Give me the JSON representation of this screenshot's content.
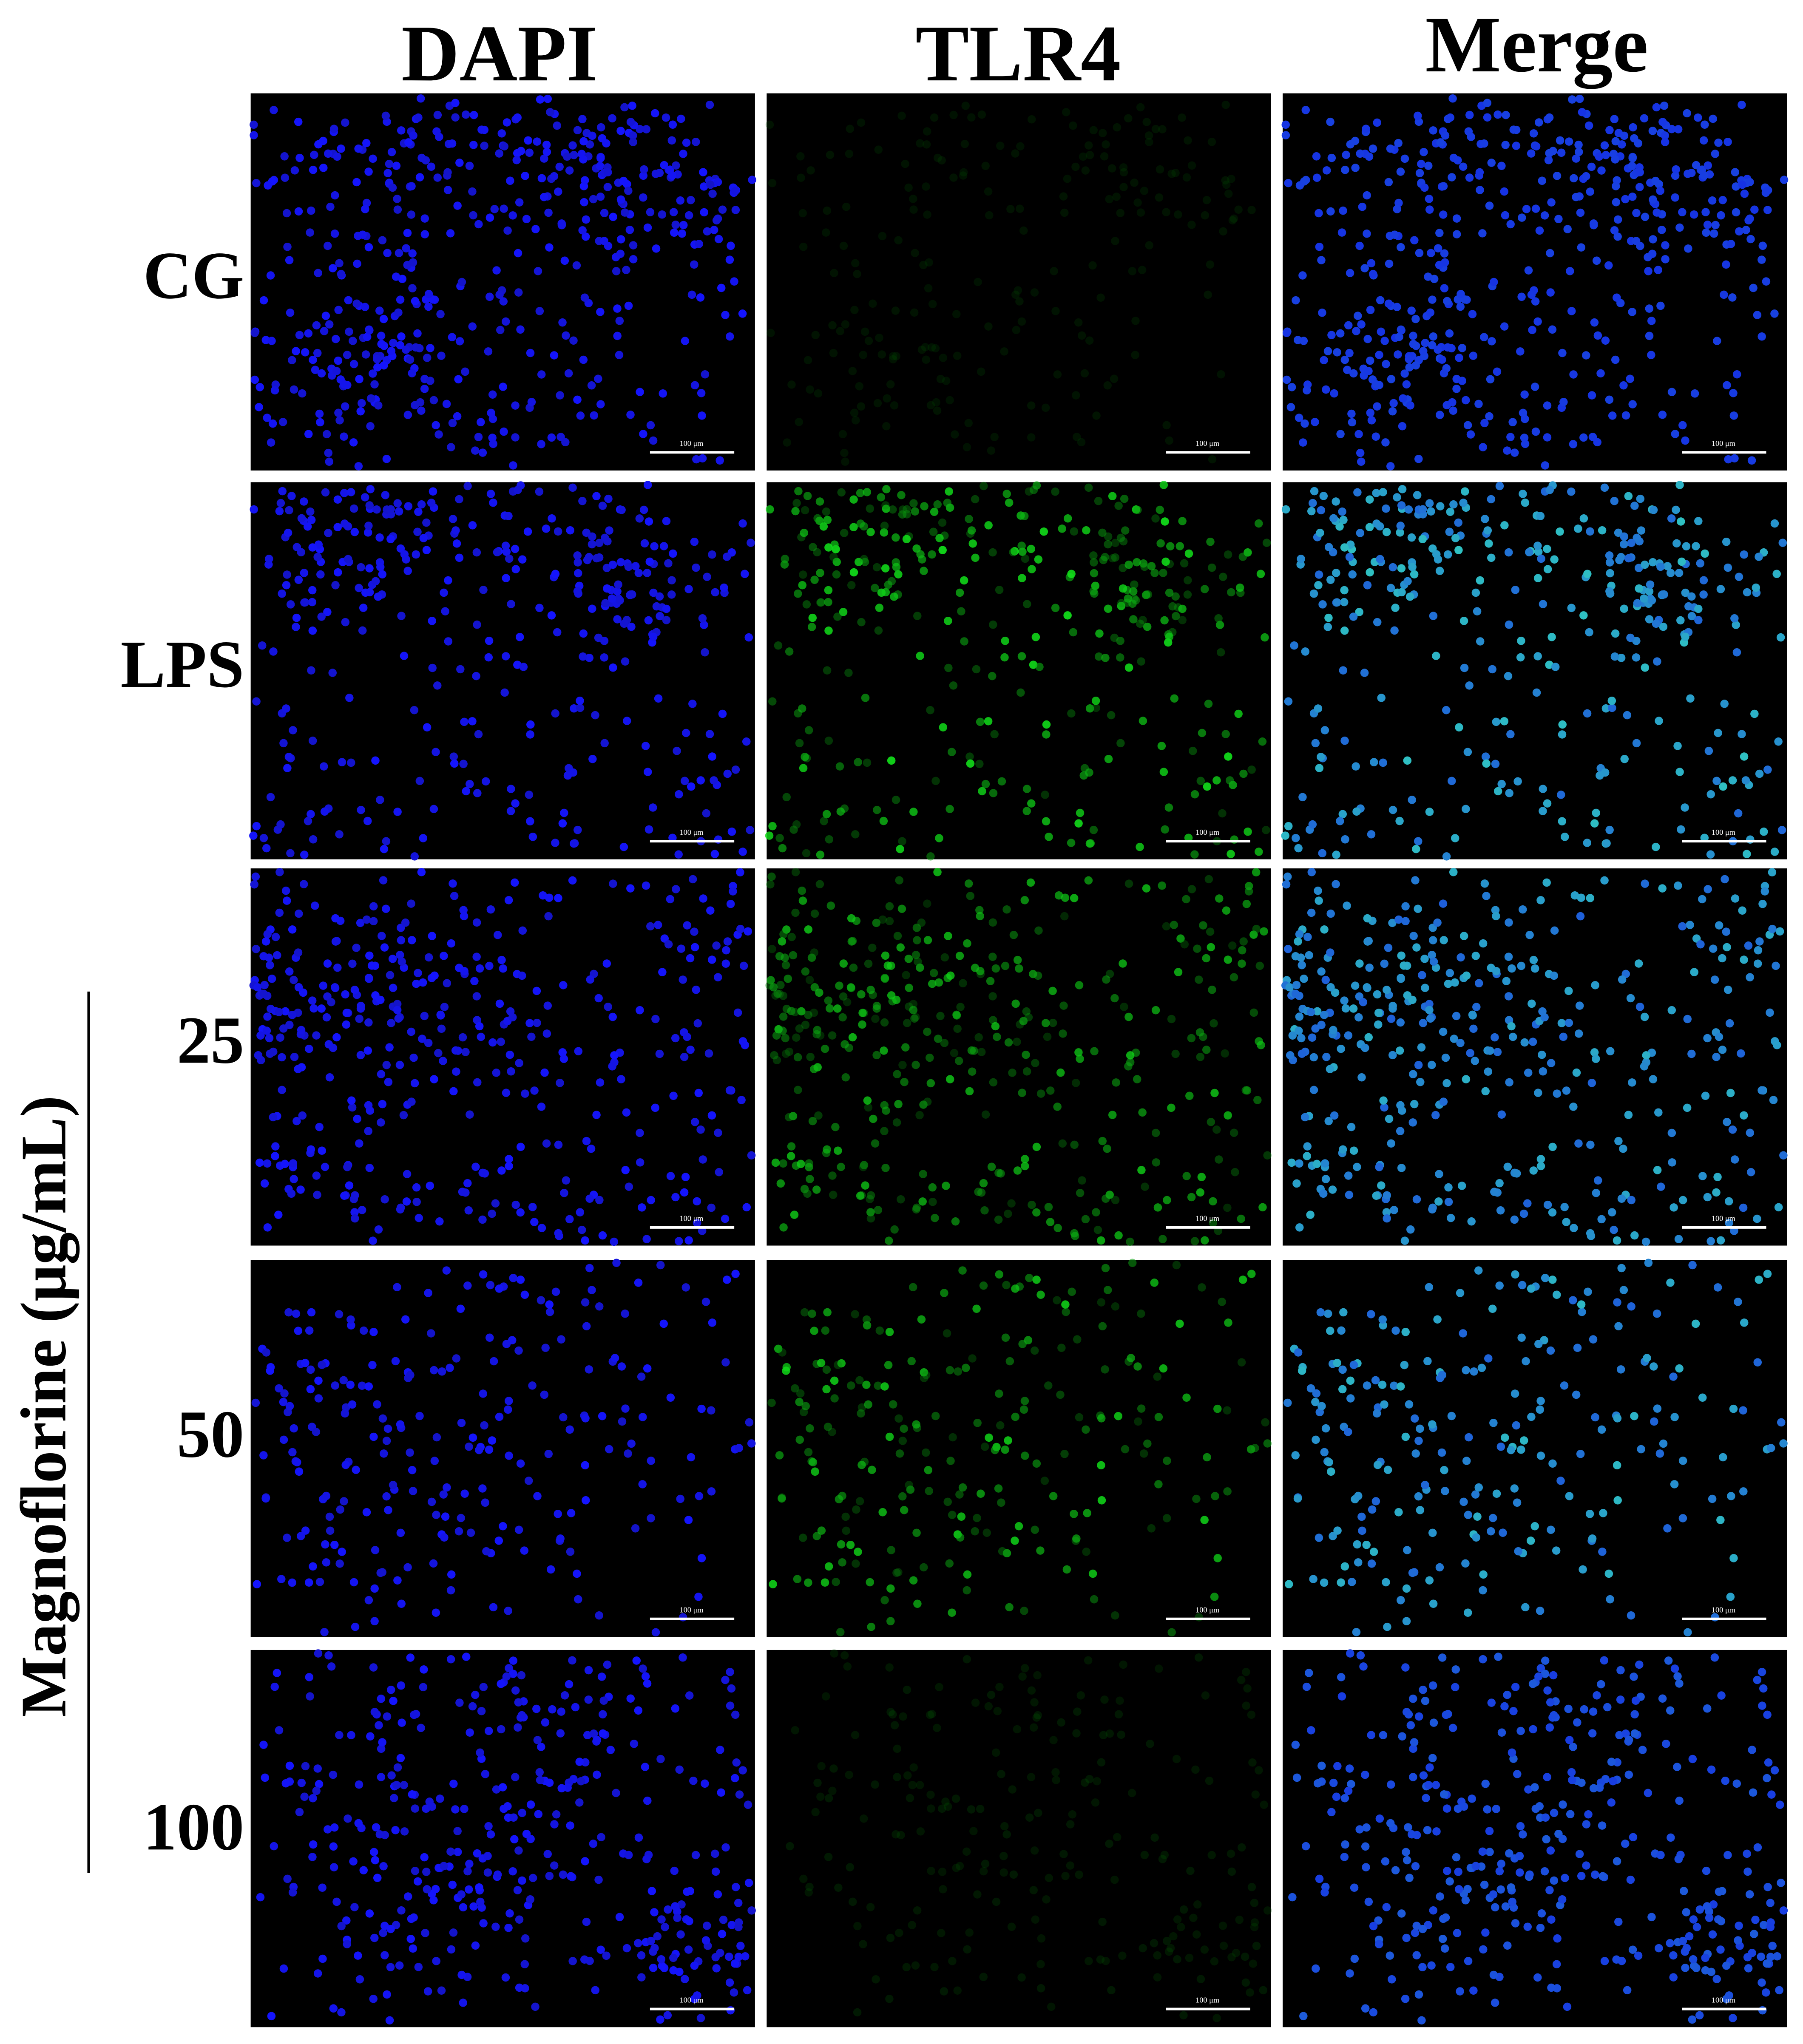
{
  "columns": [
    "DAPI",
    "TLR4",
    "Merge"
  ],
  "rows": [
    "CG",
    "LPS",
    "25",
    "50",
    "100"
  ],
  "group_label": "Magnoflorine (μg/mL)",
  "scale_bar": "100 μm"
}
